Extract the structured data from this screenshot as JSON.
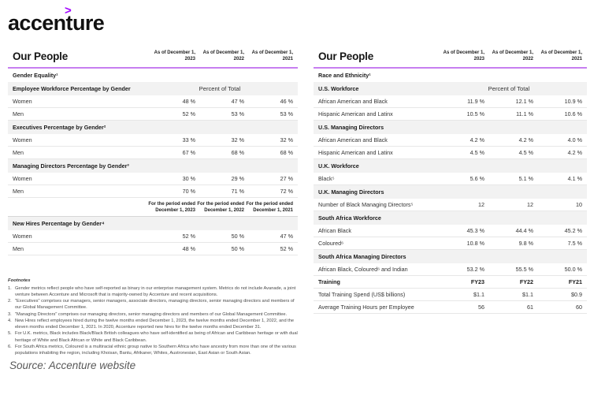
{
  "logo": {
    "wordmark": "accenture",
    "symbol": ">"
  },
  "colors": {
    "accent_purple": "#a100ff",
    "divider_purple": "#c77ef0",
    "band_gray": "#f2f2f2"
  },
  "left_table": {
    "title": "Our People",
    "columns": [
      {
        "l1": "As of December 1,",
        "l2": "2023"
      },
      {
        "l1": "As of December 1,",
        "l2": "2022"
      },
      {
        "l1": "As of December 1,",
        "l2": "2021"
      }
    ],
    "rows": [
      {
        "type": "section",
        "label": "Gender Equality¹"
      },
      {
        "type": "band",
        "label": "Employee Workforce Percentage by Gender",
        "note": "Percent of Total"
      },
      {
        "type": "data",
        "label": "Women",
        "values": [
          "48 %",
          "47 %",
          "46 %"
        ]
      },
      {
        "type": "data",
        "label": "Men",
        "values": [
          "52 %",
          "53 %",
          "53 %"
        ]
      },
      {
        "type": "band",
        "label": "Executives Percentage by Gender²"
      },
      {
        "type": "data",
        "label": "Women",
        "values": [
          "33 %",
          "32 %",
          "32 %"
        ]
      },
      {
        "type": "data",
        "label": "Men",
        "values": [
          "67 %",
          "68 %",
          "68 %"
        ]
      },
      {
        "type": "band",
        "label": "Managing Directors Percentage by Gender³"
      },
      {
        "type": "data",
        "label": "Women",
        "values": [
          "30 %",
          "29 %",
          "27 %"
        ]
      },
      {
        "type": "data",
        "label": "Men",
        "values": [
          "70 %",
          "71 %",
          "72 %"
        ]
      },
      {
        "type": "cols",
        "columns": [
          {
            "l1": "For the period ended",
            "l2": "December 1, 2023"
          },
          {
            "l1": "For the period ended",
            "l2": "December 1, 2022"
          },
          {
            "l1": "For the period ended",
            "l2": "December 1, 2021"
          }
        ]
      },
      {
        "type": "band",
        "label": "New Hires Percentage by Gender⁴"
      },
      {
        "type": "data",
        "label": "Women",
        "values": [
          "52 %",
          "50 %",
          "47 %"
        ]
      },
      {
        "type": "data",
        "label": "Men",
        "values": [
          "48 %",
          "50 %",
          "52 %"
        ]
      }
    ]
  },
  "right_table": {
    "title": "Our People",
    "columns": [
      {
        "l1": "As of December 1,",
        "l2": "2023"
      },
      {
        "l1": "As of December 1,",
        "l2": "2022"
      },
      {
        "l1": "As of December 1,",
        "l2": "2021"
      }
    ],
    "rows": [
      {
        "type": "section",
        "label": "Race and Ethnicity¹"
      },
      {
        "type": "band",
        "label": "U.S. Workforce",
        "note": "Percent of Total"
      },
      {
        "type": "data",
        "label": "African American and Black",
        "values": [
          "11.9 %",
          "12.1 %",
          "10.9 %"
        ]
      },
      {
        "type": "data",
        "label": "Hispanic American and Latinx",
        "values": [
          "10.5 %",
          "11.1 %",
          "10.6 %"
        ]
      },
      {
        "type": "band",
        "label": "U.S. Managing Directors"
      },
      {
        "type": "data",
        "label": "African American and Black",
        "values": [
          "4.2 %",
          "4.2 %",
          "4.0 %"
        ]
      },
      {
        "type": "data",
        "label": "Hispanic American and Latinx",
        "values": [
          "4.5 %",
          "4.5 %",
          "4.2 %"
        ]
      },
      {
        "type": "band",
        "label": "U.K. Workforce"
      },
      {
        "type": "data",
        "label": "Black⁵",
        "values": [
          "5.6 %",
          "5.1 %",
          "4.1 %"
        ]
      },
      {
        "type": "band",
        "label": "U.K. Managing Directors"
      },
      {
        "type": "data",
        "label": "Number of Black Managing Directors⁵",
        "values": [
          "12",
          "12",
          "10"
        ]
      },
      {
        "type": "band",
        "label": "South Africa Workforce"
      },
      {
        "type": "data",
        "label": "African Black",
        "values": [
          "45.3 %",
          "44.4 %",
          "45.2 %"
        ]
      },
      {
        "type": "data",
        "label": "Coloured⁶",
        "values": [
          "10.8 %",
          "9.8 %",
          "7.5 %"
        ]
      },
      {
        "type": "band",
        "label": "South Africa Managing Directors"
      },
      {
        "type": "data",
        "label": "African Black, Coloured⁶ and Indian",
        "values": [
          "53.2 %",
          "55.5 %",
          "50.0 %"
        ]
      },
      {
        "type": "bold",
        "label": "Training",
        "values": [
          "FY23",
          "FY22",
          "FY21"
        ]
      },
      {
        "type": "data",
        "label": "Total Training Spend (US$ billions)",
        "values": [
          "$1.1",
          "$1.1",
          "$0.9"
        ]
      },
      {
        "type": "data",
        "label": "Average Training Hours per Employee",
        "values": [
          "56",
          "61",
          "60"
        ]
      }
    ]
  },
  "footnotes": {
    "title": "Footnotes",
    "items": [
      "Gender metrics reflect people who have self-reported as binary in our enterprise management system. Metrics do not include Avanade, a joint venture between Accenture and Microsoft that is majority-owned by Accenture and recent acquisitions.",
      "\"Executives\" comprises our managers, senior managers, associate directors, managing directors, senior managing directors and members of our Global Management Committee.",
      "\"Managing Directors\" comprises our managing directors, senior managing directors and members of our Global Management Committee.",
      "New Hires reflect employees hired during the twelve months ended December 1, 2023, the twelve months ended December 1, 2022, and the eleven months ended December 1, 2021. In 2020, Accenture reported new hires for the twelve months ended December 31.",
      "For U.K. metrics, Black includes Black/Black British colleagues who have self-identified as being of African and Caribbean heritage or with dual heritage of White and Black African or White and Black Caribbean.",
      "For South Africa metrics, Coloured is a multiracial ethnic group native to Southern Africa who have ancestry from more than one of the various populations inhabiting the region, including Khoisan, Bantu, Afrikaner, Whites, Austronesian, East Asian or South Asian."
    ]
  },
  "source": "Source: Accenture website"
}
